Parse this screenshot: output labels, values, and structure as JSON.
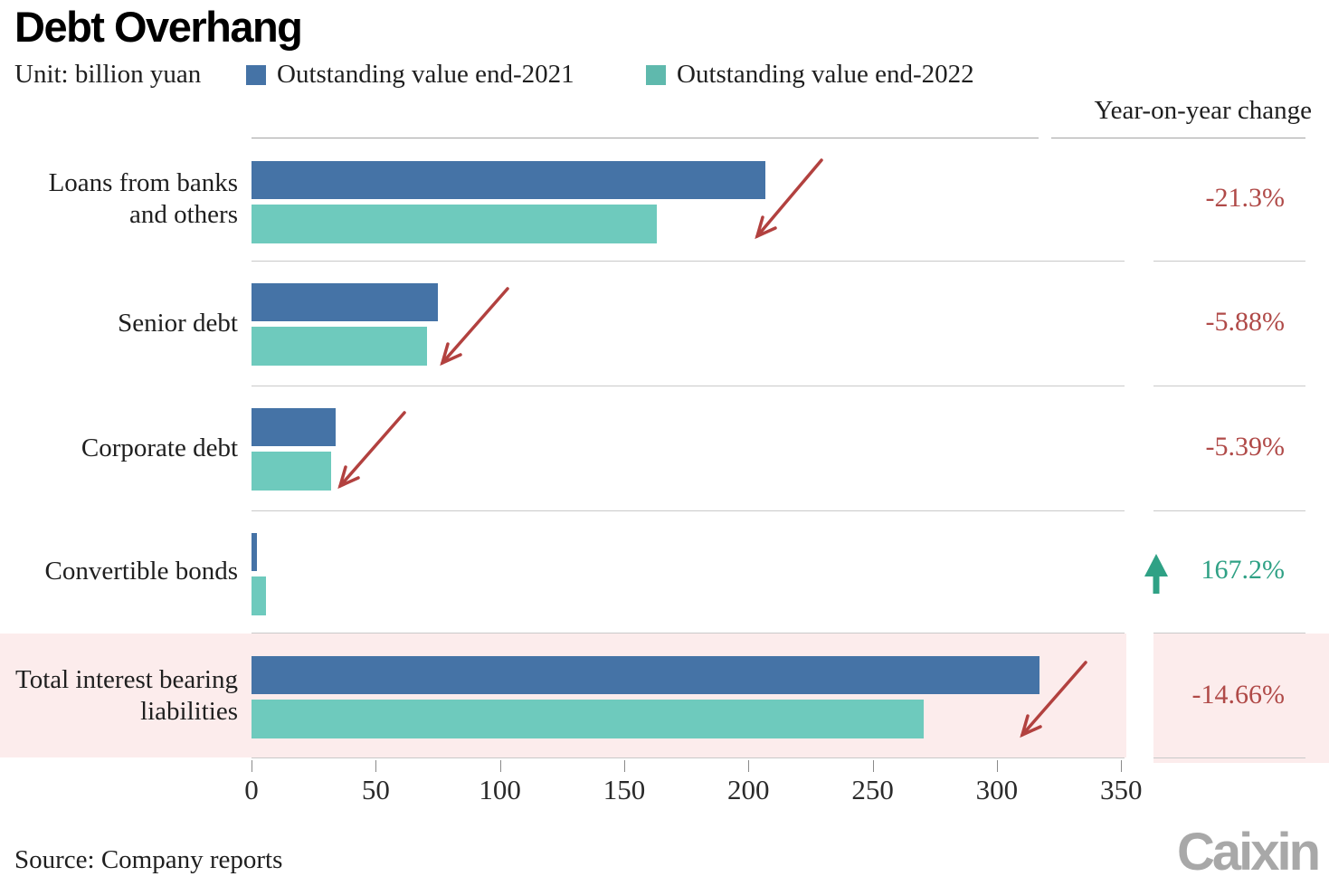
{
  "header": {
    "title": "Debt Overhang",
    "unit_label": "Unit: billion yuan",
    "yoy_header": "Year-on-year change"
  },
  "legend": [
    {
      "label": "Outstanding value end-2021",
      "color": "#4573a6"
    },
    {
      "label": "Outstanding value end-2022",
      "color": "#5fb9ad"
    }
  ],
  "colors": {
    "bar_2021": "#4573a6",
    "bar_2022": "#6ecabd",
    "negative_text": "#b04a48",
    "positive_text": "#2fa185",
    "arrow_red": "#b2413f",
    "arrow_green": "#2fa185",
    "highlight_band": "#fcecec"
  },
  "chart_data": {
    "type": "bar",
    "orientation": "horizontal",
    "title": "Debt Overhang",
    "unit": "billion yuan",
    "categories": [
      "Loans from banks and others",
      "Senior debt",
      "Corporate debt",
      "Convertible bonds",
      "Total interest bearing liabilities"
    ],
    "series": [
      {
        "name": "Outstanding value end-2021",
        "values": [
          207,
          75,
          34,
          2.2,
          317
        ]
      },
      {
        "name": "Outstanding value end-2022",
        "values": [
          163,
          70.6,
          32.2,
          5.9,
          270.5
        ]
      }
    ],
    "yoy_change": {
      "label": "Year-on-year change",
      "values": [
        "-21.3%",
        "-5.88%",
        "-5.39%",
        "167.2%",
        "-14.66%"
      ],
      "directions": [
        "down",
        "down",
        "down",
        "up",
        "down"
      ]
    },
    "x_axis": {
      "min": 0,
      "max": 350,
      "tick_step": 50,
      "ticks": [
        0,
        50,
        100,
        150,
        200,
        250,
        300,
        350
      ]
    },
    "highlight_row_index": 4,
    "legend_position": "top",
    "grid": "row-separators-only"
  },
  "footer": {
    "source": "Source: Company reports",
    "logo": "Caixin"
  }
}
